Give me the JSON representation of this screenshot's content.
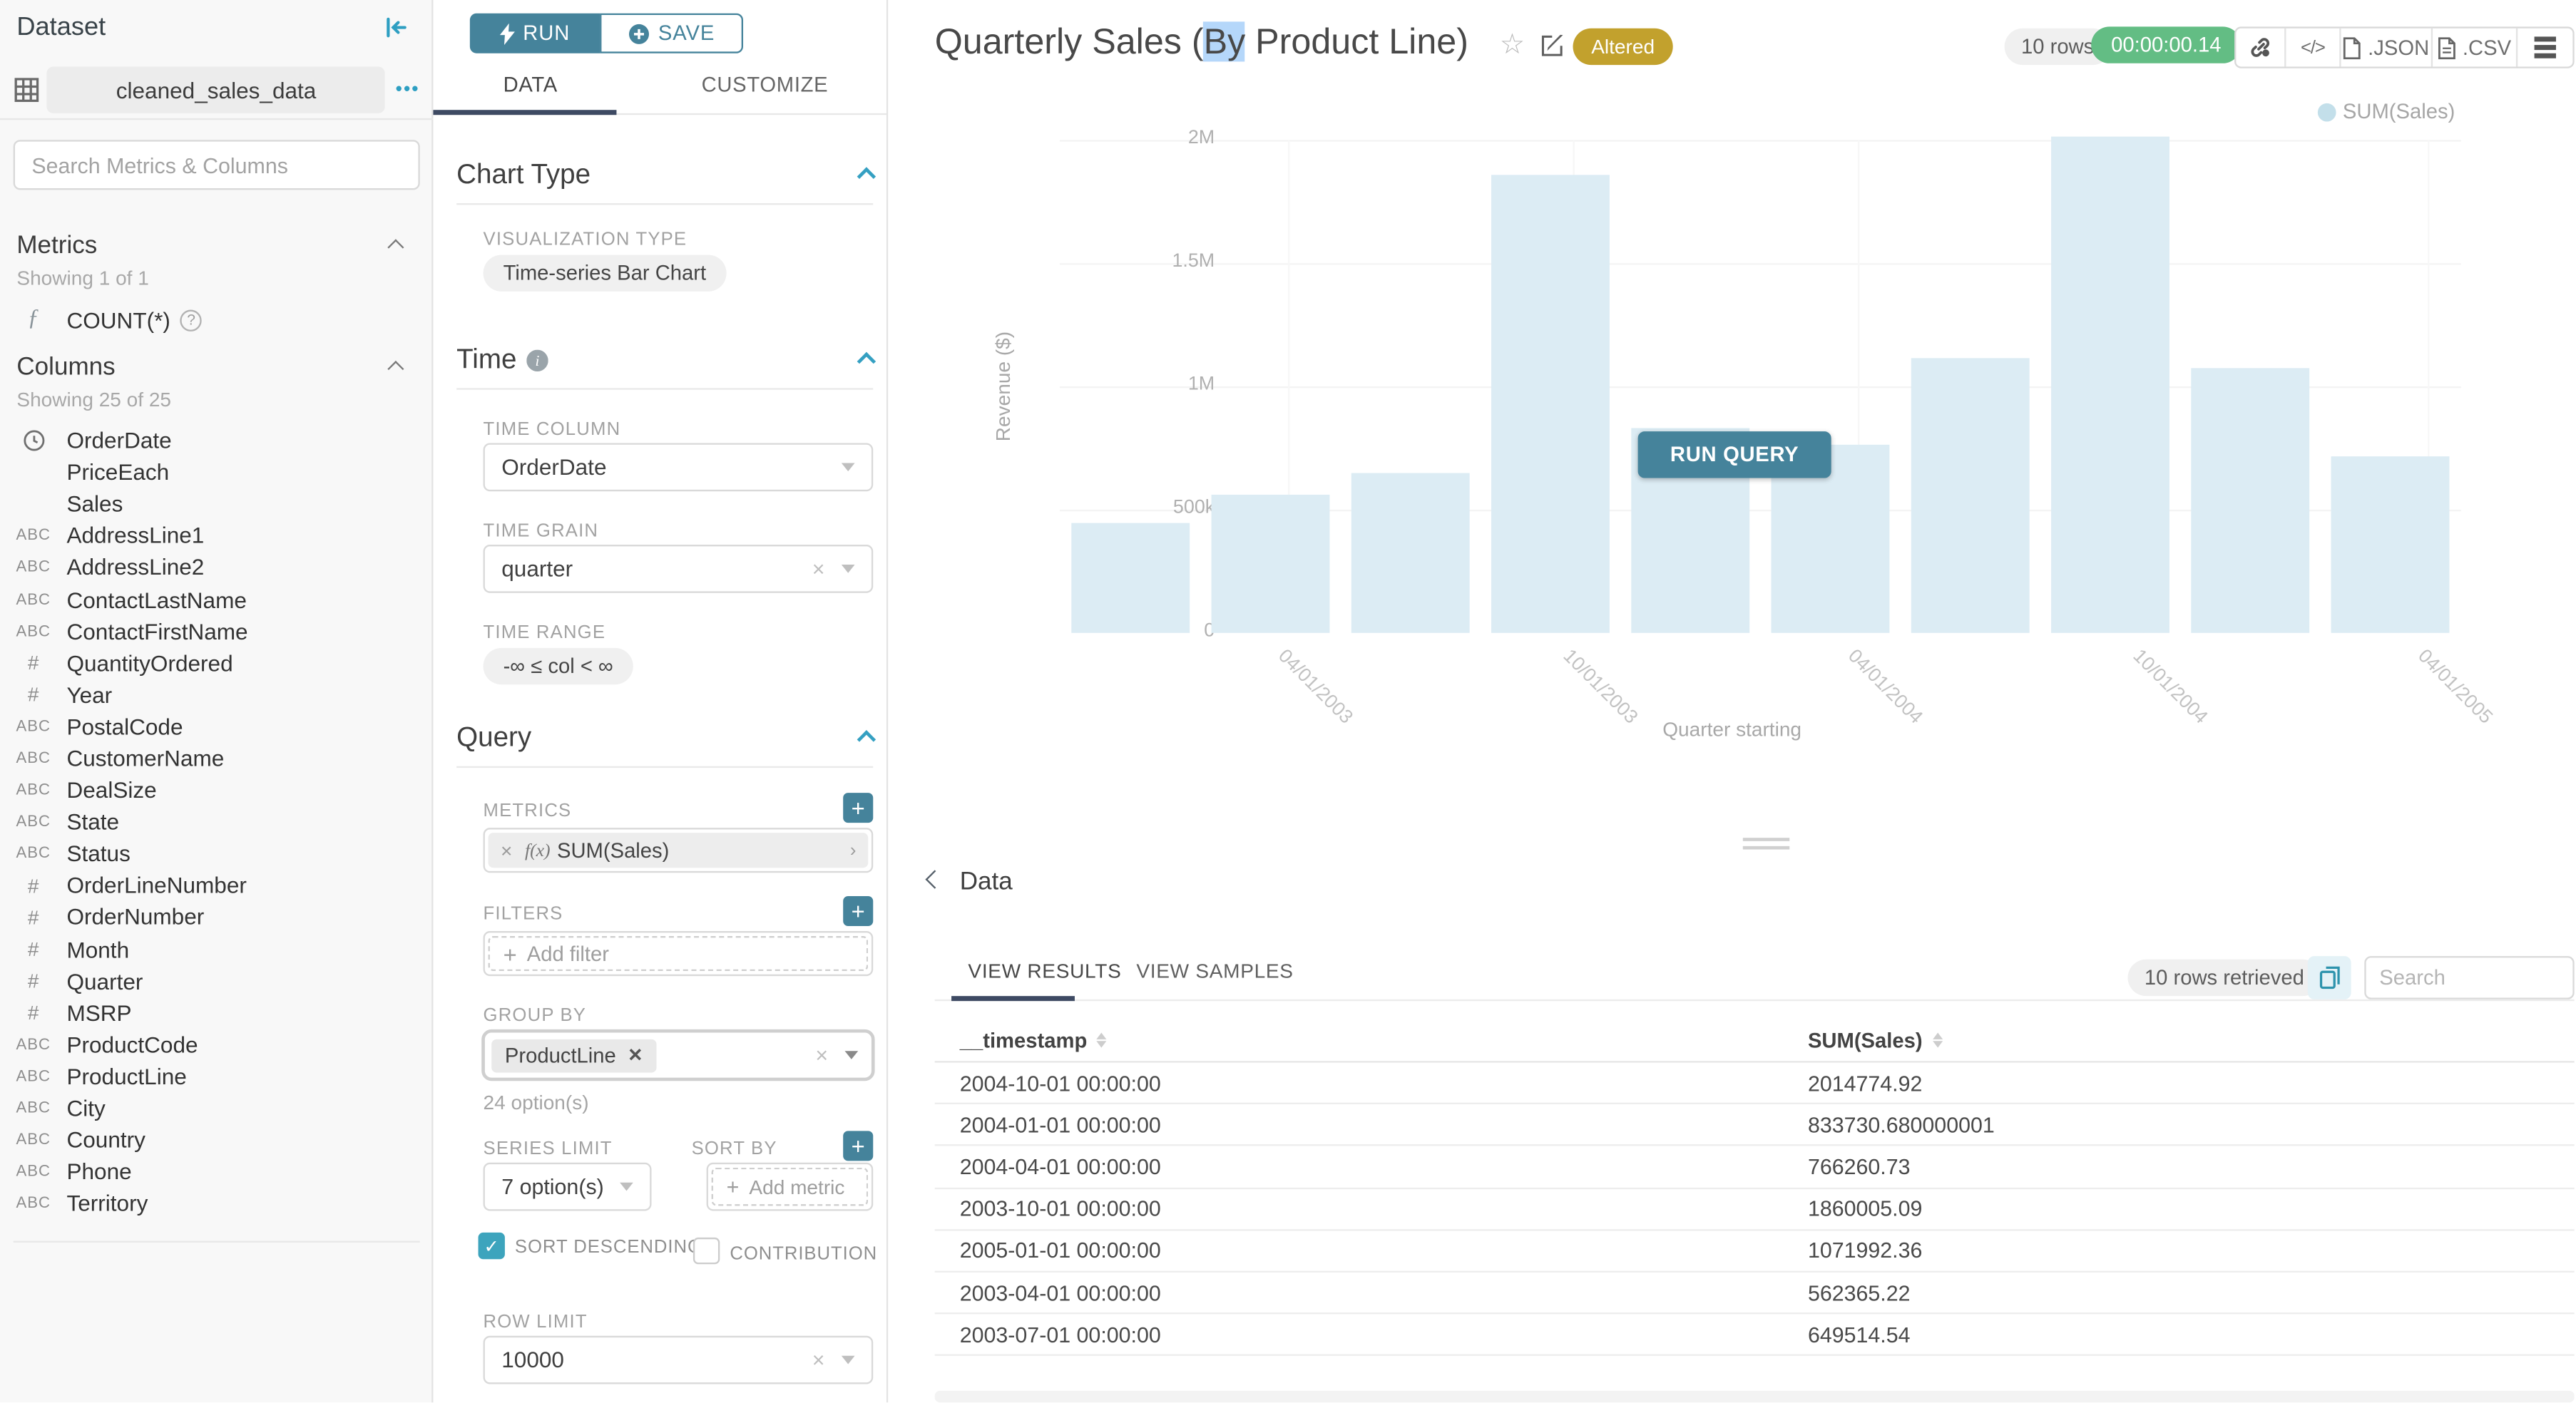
{
  "sidebar": {
    "title": "Dataset",
    "dataset_name": "cleaned_sales_data",
    "more_dots": "•••",
    "search_placeholder": "Search Metrics & Columns",
    "metrics_header": "Metrics",
    "metrics_showing": "Showing 1 of 1",
    "metric_items": [
      {
        "label": "COUNT(*)"
      }
    ],
    "columns_header": "Columns",
    "columns_showing": "Showing 25 of 25",
    "columns": [
      {
        "type": "time",
        "label": "OrderDate"
      },
      {
        "type": "none",
        "label": "PriceEach"
      },
      {
        "type": "none",
        "label": "Sales"
      },
      {
        "type": "text",
        "label": "AddressLine1"
      },
      {
        "type": "text",
        "label": "AddressLine2"
      },
      {
        "type": "text",
        "label": "ContactLastName"
      },
      {
        "type": "text",
        "label": "ContactFirstName"
      },
      {
        "type": "num",
        "label": "QuantityOrdered"
      },
      {
        "type": "num",
        "label": "Year"
      },
      {
        "type": "text",
        "label": "PostalCode"
      },
      {
        "type": "text",
        "label": "CustomerName"
      },
      {
        "type": "text",
        "label": "DealSize"
      },
      {
        "type": "text",
        "label": "State"
      },
      {
        "type": "text",
        "label": "Status"
      },
      {
        "type": "num",
        "label": "OrderLineNumber"
      },
      {
        "type": "num",
        "label": "OrderNumber"
      },
      {
        "type": "num",
        "label": "Month"
      },
      {
        "type": "num",
        "label": "Quarter"
      },
      {
        "type": "num",
        "label": "MSRP"
      },
      {
        "type": "text",
        "label": "ProductCode"
      },
      {
        "type": "text",
        "label": "ProductLine"
      },
      {
        "type": "text",
        "label": "City"
      },
      {
        "type": "text",
        "label": "Country"
      },
      {
        "type": "text",
        "label": "Phone"
      },
      {
        "type": "text",
        "label": "Territory"
      }
    ]
  },
  "controls": {
    "run": "RUN",
    "save": "SAVE",
    "tab_data": "DATA",
    "tab_customize": "CUSTOMIZE",
    "chart_type_header": "Chart Type",
    "viz_type_label": "VISUALIZATION TYPE",
    "viz_type_value": "Time-series Bar Chart",
    "time_header": "Time",
    "time_column_label": "TIME COLUMN",
    "time_column_value": "OrderDate",
    "time_grain_label": "TIME GRAIN",
    "time_grain_value": "quarter",
    "time_range_label": "TIME RANGE",
    "time_range_value": "-∞ ≤ col < ∞",
    "query_header": "Query",
    "metrics_label": "METRICS",
    "metric_fx": "f(x)",
    "metric_value": "SUM(Sales)",
    "filters_label": "FILTERS",
    "add_filter": "Add filter",
    "group_by_label": "GROUP BY",
    "group_by_value": "ProductLine",
    "group_by_options": "24 option(s)",
    "series_limit_label": "SERIES LIMIT",
    "series_limit_value": "7 option(s)",
    "sort_by_label": "SORT BY",
    "add_metric": "Add metric",
    "sort_descending_label": "SORT DESCENDING",
    "contribution_label": "CONTRIBUTION",
    "row_limit_label": "ROW LIMIT",
    "row_limit_value": "10000"
  },
  "header": {
    "title_pre": "Quarterly Sales (",
    "title_selected": "By",
    "title_post": " Product Line)",
    "altered_badge": "Altered",
    "rows_pill": "10 rows",
    "timer": "00:00:00.14",
    "code_label": "</>",
    "json_label": ".JSON",
    "csv_label": ".CSV"
  },
  "chart": {
    "legend": "SUM(Sales)",
    "run_query": "RUN QUERY"
  },
  "results": {
    "section_header": "Data",
    "tab_results": "VIEW RESULTS",
    "tab_samples": "VIEW SAMPLES",
    "rows_retrieved": "10 rows retrieved",
    "search_placeholder": "Search",
    "col1": "__timestamp",
    "col2": "SUM(Sales)",
    "rows": [
      [
        "2004-10-01 00:00:00",
        "2014774.92"
      ],
      [
        "2004-01-01 00:00:00",
        "833730.680000001"
      ],
      [
        "2004-04-01 00:00:00",
        "766260.73"
      ],
      [
        "2003-10-01 00:00:00",
        "1860005.09"
      ],
      [
        "2005-01-01 00:00:00",
        "1071992.36"
      ],
      [
        "2003-04-01 00:00:00",
        "562365.22"
      ],
      [
        "2003-07-01 00:00:00",
        "649514.54"
      ]
    ]
  },
  "chart_data": {
    "type": "bar",
    "title": "Quarterly Sales (By Product Line)",
    "series_name": "SUM(Sales)",
    "x": [
      "2003-01-01",
      "2003-04-01",
      "2003-07-01",
      "2003-10-01",
      "2004-01-01",
      "2004-04-01",
      "2004-07-01",
      "2004-10-01",
      "2005-01-01",
      "2005-04-01"
    ],
    "values": [
      445000,
      562365.22,
      649514.54,
      1860005.09,
      833730.68,
      766260.73,
      1113000,
      2014774.92,
      1071992.36,
      719000
    ],
    "xlabel": "Quarter starting",
    "ylabel": "Revenue ($)",
    "ylim": [
      0,
      2000000
    ],
    "ytick_values": [
      0,
      500000,
      1000000,
      1500000,
      2000000
    ],
    "ytick_labels": [
      "0",
      "500k",
      "1M",
      "1.5M",
      "2M"
    ],
    "xtick_labels": [
      "04/01/2003",
      "10/01/2003",
      "04/01/2004",
      "10/01/2004",
      "04/01/2005"
    ],
    "legend_position": "top-right",
    "grid": true,
    "bar_color": "#dcecf4"
  },
  "colors": {
    "accent": "#2e9fc2",
    "button_teal": "#45839b",
    "tab_underline": "#3e4a63",
    "altered_badge": "#c2a12d",
    "timer_green": "#63bd84",
    "bar_fill": "#dcecf4",
    "checkbox_checked": "#3da4bd",
    "title_selection": "#b5d7fa"
  }
}
